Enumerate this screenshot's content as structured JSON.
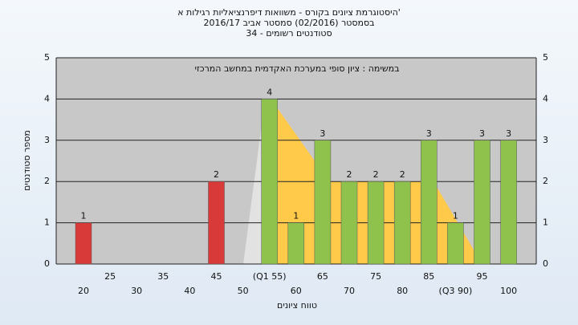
{
  "chart_data": {
    "type": "bar",
    "title": "היסטוגרמת ציונים בקורס - משוואות דיפרנציאליות רגילות א'",
    "subtitle": [
      "בסמסטר (02/2016) סמסטר אביב 2016/17",
      "סטודנטים רשומים - 34"
    ],
    "annotation": "במשימה : ציון סופי במערכת האקדמית במחשב המרכזי",
    "x_label": "טווח ציונים",
    "y_label": "מספר סטודנטים",
    "categories": [
      "20",
      "25",
      "30",
      "35",
      "40",
      "45",
      "50",
      "(Q1 55)",
      "60",
      "65",
      "70",
      "75",
      "80",
      "85",
      "(Q3 90)",
      "95",
      "100"
    ],
    "values": [
      1,
      0,
      0,
      0,
      0,
      2,
      0,
      4,
      1,
      3,
      2,
      2,
      2,
      3,
      1,
      3,
      3
    ],
    "colors": [
      "#d83a3a",
      "#d83a3a",
      "#d83a3a",
      "#d83a3a",
      "#d83a3a",
      "#d83a3a",
      "#d83a3a",
      "#8fc24c",
      "#8fc24c",
      "#8fc24c",
      "#8fc24c",
      "#8fc24c",
      "#8fc24c",
      "#8fc24c",
      "#8fc24c",
      "#8fc24c",
      "#8fc24c"
    ],
    "ylim": [
      0,
      5
    ],
    "yticks": [
      0,
      1,
      2,
      3,
      4,
      5
    ],
    "y2lim": [
      0,
      5
    ],
    "y2ticks": [
      0,
      1,
      2,
      3,
      4,
      5
    ],
    "grid": true
  }
}
